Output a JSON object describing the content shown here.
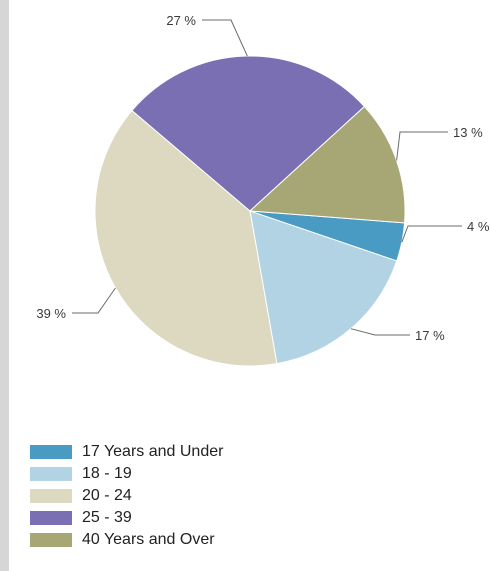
{
  "chart_data": {
    "type": "pie",
    "title": "",
    "slices": [
      {
        "label": "17 Years and Under",
        "value": 4,
        "value_label": "4 %",
        "color": "#4a9bc4"
      },
      {
        "label": "18 - 19",
        "value": 17,
        "value_label": "17 %",
        "color": "#b2d3e4"
      },
      {
        "label": "20 - 24",
        "value": 39,
        "value_label": "39 %",
        "color": "#ddd8c0"
      },
      {
        "label": "25 - 39",
        "value": 27,
        "value_label": "27 %",
        "color": "#7a6fb2"
      },
      {
        "label": "40 Years and Over",
        "value": 13,
        "value_label": "13 %",
        "color": "#a7a776"
      }
    ],
    "legend_position": "bottom-left"
  }
}
